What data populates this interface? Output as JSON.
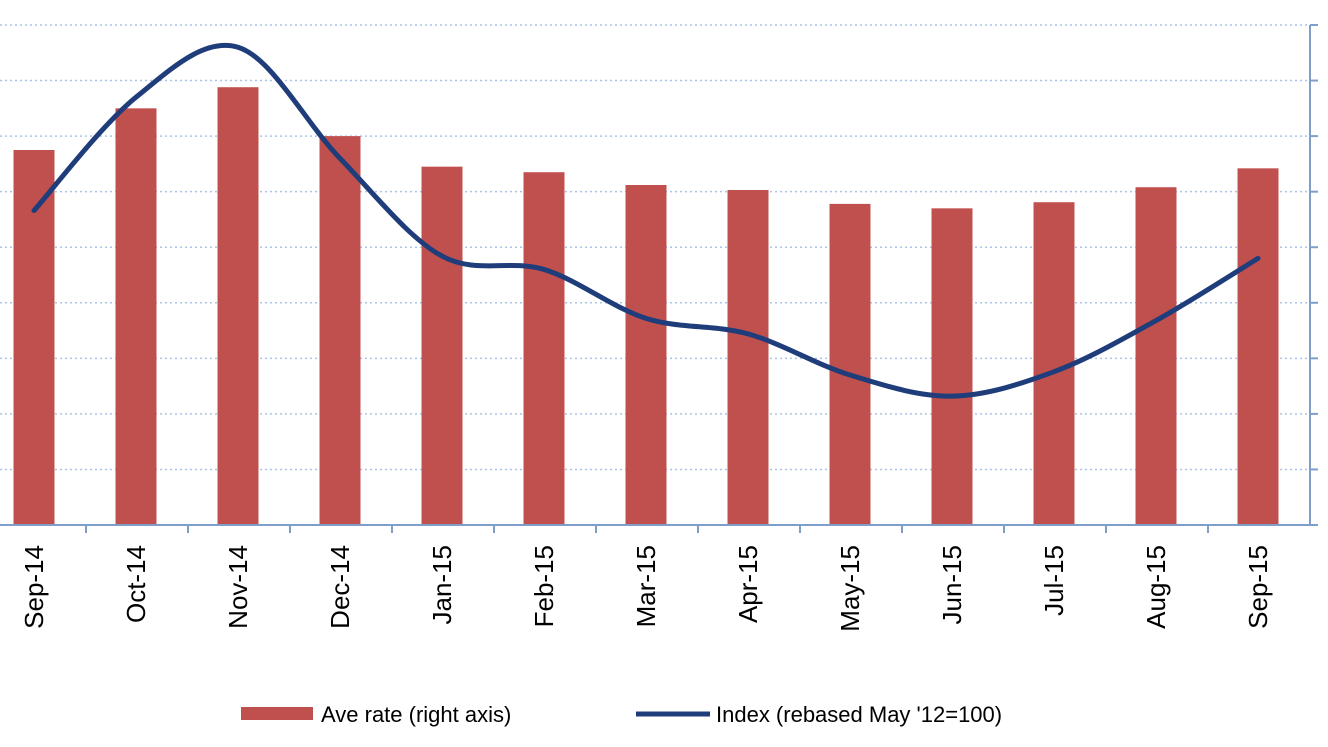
{
  "chart_data": {
    "type": "bar",
    "title": "",
    "xlabel": "",
    "ylabel": "",
    "categories": [
      "Sep-14",
      "Oct-14",
      "Nov-14",
      "Dec-14",
      "Jan-15",
      "Feb-15",
      "Mar-15",
      "Apr-15",
      "May-15",
      "Jun-15",
      "Jul-15",
      "Aug-15",
      "Sep-15"
    ],
    "series": [
      {
        "name": "Ave rate (right axis)",
        "type": "bar",
        "axis": "right",
        "color": "#c0504d",
        "values": [
          6.75,
          7.5,
          7.88,
          7.0,
          6.45,
          6.35,
          6.12,
          6.03,
          5.78,
          5.7,
          5.81,
          6.08,
          6.42
        ]
      },
      {
        "name": "Index (rebased May '12=100)",
        "type": "line",
        "axis": "left",
        "color": "#1f3d7a",
        "values": [
          108.3,
          118.5,
          123.0,
          113.0,
          104.2,
          103.0,
          98.6,
          97.2,
          93.5,
          91.6,
          93.8,
          98.4,
          104.0
        ]
      }
    ],
    "ylim_right": [
      0,
      9
    ],
    "ylim_left": [
      80,
      125
    ],
    "grid": true,
    "legend_position": "bottom"
  }
}
